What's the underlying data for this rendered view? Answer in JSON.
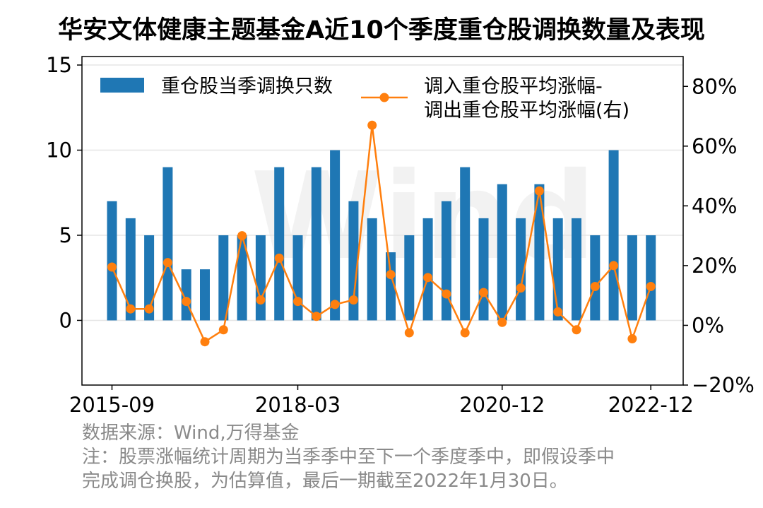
{
  "title": "华安文体健康主题基金A近10个季度重仓股调换数量及表现",
  "watermark": "Wind",
  "legend": {
    "bar_label": "重仓股当季调换只数",
    "line_label_1": "调入重仓股平均涨幅-",
    "line_label_2": "调出重仓股平均涨幅(右)"
  },
  "notes": {
    "source": "数据来源：Wind,万得基金",
    "note_1": "注：股票涨幅统计周期为当季季中至下一个季度季中，即假设季中",
    "note_2": "完成调仓换股，为估算值，最后一期截至2022年1月30日。"
  },
  "colors": {
    "bar": "#1f77b4",
    "line": "#ff7f0e",
    "grid": "#e6e6e6"
  },
  "chart_data": {
    "type": "bar+line",
    "title": "华安文体健康主题基金A近10个季度重仓股调换数量及表现",
    "categories": [
      "2015-09",
      "2015-12",
      "2016-03",
      "2016-06",
      "2016-09",
      "2016-12",
      "2017-03",
      "2017-06",
      "2017-09",
      "2017-12",
      "2018-03",
      "2018-06",
      "2018-09",
      "2018-12",
      "2019-03",
      "2019-06",
      "2019-09",
      "2019-12",
      "2020-03",
      "2020-06",
      "2020-09",
      "2020-12",
      "2021-03",
      "2021-06",
      "2021-09",
      "2021-12",
      "2022-03",
      "2022-06",
      "2022-09",
      "2022-12"
    ],
    "x_tick_labels": [
      "2015-09",
      "2018-03",
      "2020-12",
      "2022-12"
    ],
    "series": [
      {
        "name": "重仓股当季调换只数",
        "type": "bar",
        "axis": "left",
        "values": [
          7,
          6,
          5,
          9,
          3,
          3,
          5,
          5,
          5,
          9,
          5,
          9,
          10,
          7,
          6,
          4,
          5,
          6,
          7,
          9,
          6,
          8,
          6,
          8,
          6,
          6,
          5,
          10,
          5,
          5
        ]
      },
      {
        "name": "调入重仓股平均涨幅-调出重仓股平均涨幅(右)",
        "type": "line",
        "axis": "right",
        "unit": "%",
        "values": [
          19.5,
          5.5,
          5.5,
          21,
          8,
          -5.5,
          -1.5,
          30,
          8.5,
          22.5,
          8,
          3,
          7,
          8.5,
          67,
          17,
          -2.5,
          16,
          10.5,
          -2.5,
          11,
          1,
          12.5,
          45,
          4.5,
          -1.5,
          13,
          20,
          -4.5,
          13
        ]
      }
    ],
    "y_left": {
      "ticks": [
        0,
        5,
        10,
        15
      ],
      "tick_labels": [
        "0",
        "5",
        "10",
        "15"
      ],
      "ylim": [
        -3.8,
        15.5
      ]
    },
    "y_right": {
      "ticks": [
        -20,
        0,
        20,
        40,
        60,
        80
      ],
      "tick_labels": [
        "−20%",
        "0%",
        "20%",
        "40%",
        "60%",
        "80%"
      ],
      "ylim": [
        -20.0,
        90.0
      ]
    },
    "grid": true,
    "legend_position": "top"
  }
}
